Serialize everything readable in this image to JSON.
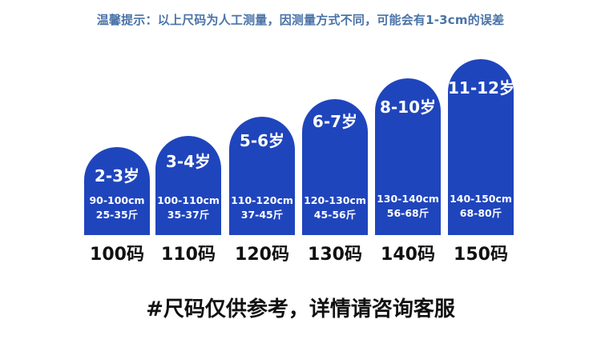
{
  "notice": "温馨提示：以上尺码为人工测量，因测量方式不同，可能会有1-3cm的误差",
  "sizes": [
    {
      "age": "2-3岁",
      "height": "90-100cm",
      "weight": "25-35斤",
      "size": "100码"
    },
    {
      "age": "3-4岁",
      "height": "100-110cm",
      "weight": "35-37斤",
      "size": "110码"
    },
    {
      "age": "5-6岁",
      "height": "110-120cm",
      "weight": "37-45斤",
      "size": "120码"
    },
    {
      "age": "6-7岁",
      "height": "120-130cm",
      "weight": "45-56斤",
      "size": "130码"
    },
    {
      "age": "8-10岁",
      "height": "130-140cm",
      "weight": "56-68斤",
      "size": "140码"
    },
    {
      "age": "11-12岁",
      "height": "140-150cm",
      "weight": "68-80斤",
      "size": "150码"
    }
  ],
  "footer": "#尺码仅供参考，详情请咨询客服",
  "colors": {
    "card": "#1f45bd",
    "notice": "#4a73a8",
    "text": "#111111"
  }
}
